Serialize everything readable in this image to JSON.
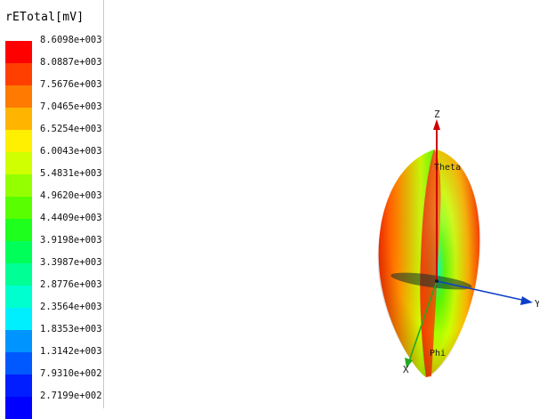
{
  "legend": {
    "title": "rETotal[mV]",
    "ticks": [
      "8.6098e+003",
      "8.0887e+003",
      "7.5676e+003",
      "7.0465e+003",
      "6.5254e+003",
      "6.0043e+003",
      "5.4831e+003",
      "4.9620e+003",
      "4.4409e+003",
      "3.9198e+003",
      "3.3987e+003",
      "2.8776e+003",
      "2.3564e+003",
      "1.8353e+003",
      "1.3142e+003",
      "7.9310e+002",
      "2.7199e+002"
    ],
    "colors": [
      "#ff0000",
      "#ff3f00",
      "#ff7a00",
      "#ffb500",
      "#ffef00",
      "#cfff00",
      "#94ff00",
      "#59ff00",
      "#1eff1e",
      "#00ff59",
      "#00ff94",
      "#00ffcf",
      "#00efff",
      "#0094ff",
      "#0059ff",
      "#001eff",
      "#0000ff"
    ]
  },
  "axes": {
    "z_label": "Z",
    "y_label": "Y",
    "x_label": "X",
    "theta_label": "Theta",
    "phi_label": "Phi",
    "z_color": "#cc0000",
    "y_color": "#1040c8",
    "x_color": "#22aa22"
  }
}
